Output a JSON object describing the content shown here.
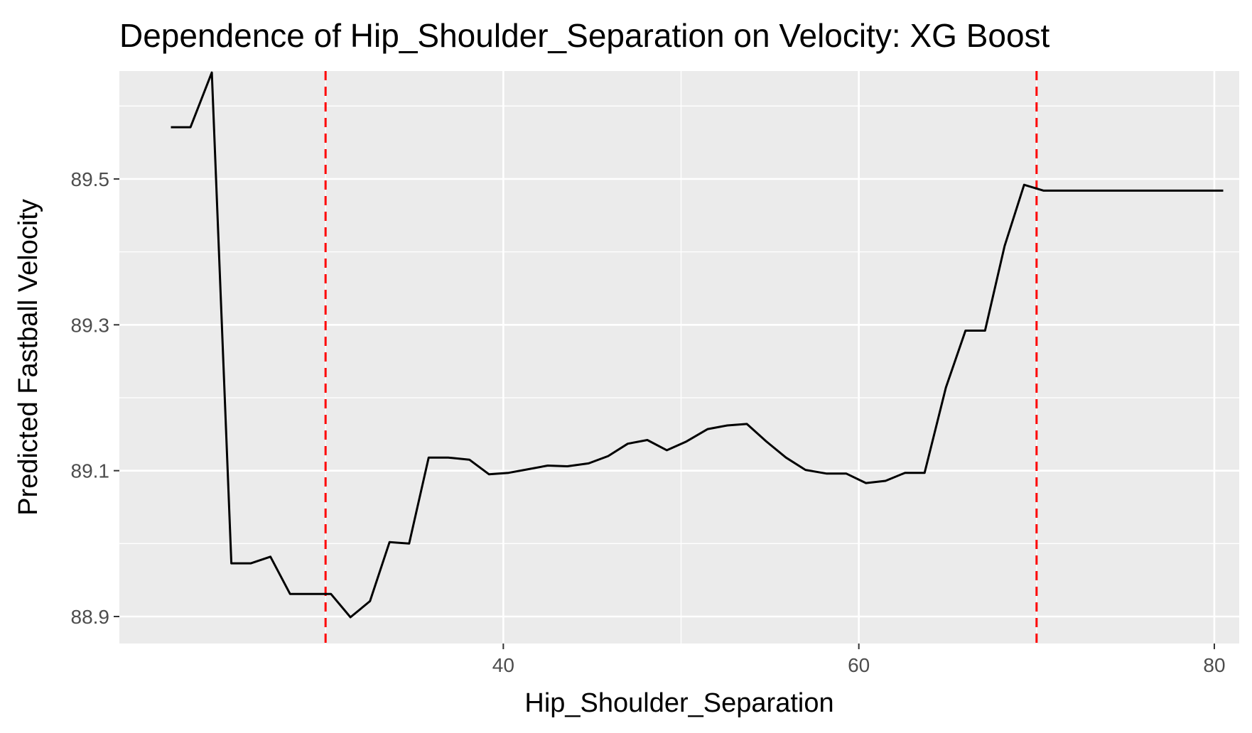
{
  "chart_data": {
    "type": "line",
    "title": "Dependence of Hip_Shoulder_Separation on Velocity: XG Boost",
    "xlabel": "Hip_Shoulder_Separation",
    "ylabel": "Predicted Fastball Velocity",
    "xlim": [
      18.4,
      81.4
    ],
    "ylim": [
      88.863,
      89.648
    ],
    "x_ticks": [
      40,
      60,
      80
    ],
    "y_ticks": [
      88.9,
      89.1,
      89.3,
      89.5
    ],
    "x_tick_labels": [
      "40",
      "60",
      "80"
    ],
    "y_tick_labels": [
      "88.9",
      "89.1",
      "89.3",
      "89.5"
    ],
    "grid": true,
    "background": "#ebebeb",
    "line_color": "#000000",
    "reference_line_color": "#ff0000",
    "reference_lines_x": [
      30.0,
      70.0
    ],
    "series": [
      {
        "x": [
          21.3,
          22.4,
          23.6,
          24.7,
          25.8,
          26.9,
          28.0,
          29.1,
          30.3,
          31.4,
          32.5,
          33.6,
          34.7,
          35.8,
          36.9,
          38.1,
          39.2,
          40.3,
          41.4,
          42.5,
          43.6,
          44.8,
          45.9,
          47.0,
          48.1,
          49.2,
          50.3,
          51.5,
          52.6,
          53.7,
          54.8,
          55.9,
          57.0,
          58.2,
          59.3,
          60.4,
          61.5,
          62.6,
          63.7,
          64.9,
          66.0,
          67.1,
          68.2,
          69.3,
          70.4,
          71.6,
          72.7,
          73.8,
          74.9,
          76.0,
          77.1,
          78.3,
          79.4,
          80.5
        ],
        "values": [
          89.571,
          89.571,
          89.646,
          88.973,
          88.973,
          88.982,
          88.931,
          88.931,
          88.931,
          88.899,
          88.921,
          89.002,
          89.0,
          89.118,
          89.118,
          89.115,
          89.095,
          89.097,
          89.102,
          89.107,
          89.106,
          89.11,
          89.12,
          89.137,
          89.142,
          89.128,
          89.14,
          89.157,
          89.162,
          89.164,
          89.14,
          89.118,
          89.101,
          89.096,
          89.096,
          89.083,
          89.086,
          89.097,
          89.097,
          89.214,
          89.292,
          89.292,
          89.408,
          89.492,
          89.484,
          89.484,
          89.484,
          89.484,
          89.484,
          89.484,
          89.484,
          89.484,
          89.484,
          89.484
        ]
      }
    ]
  }
}
